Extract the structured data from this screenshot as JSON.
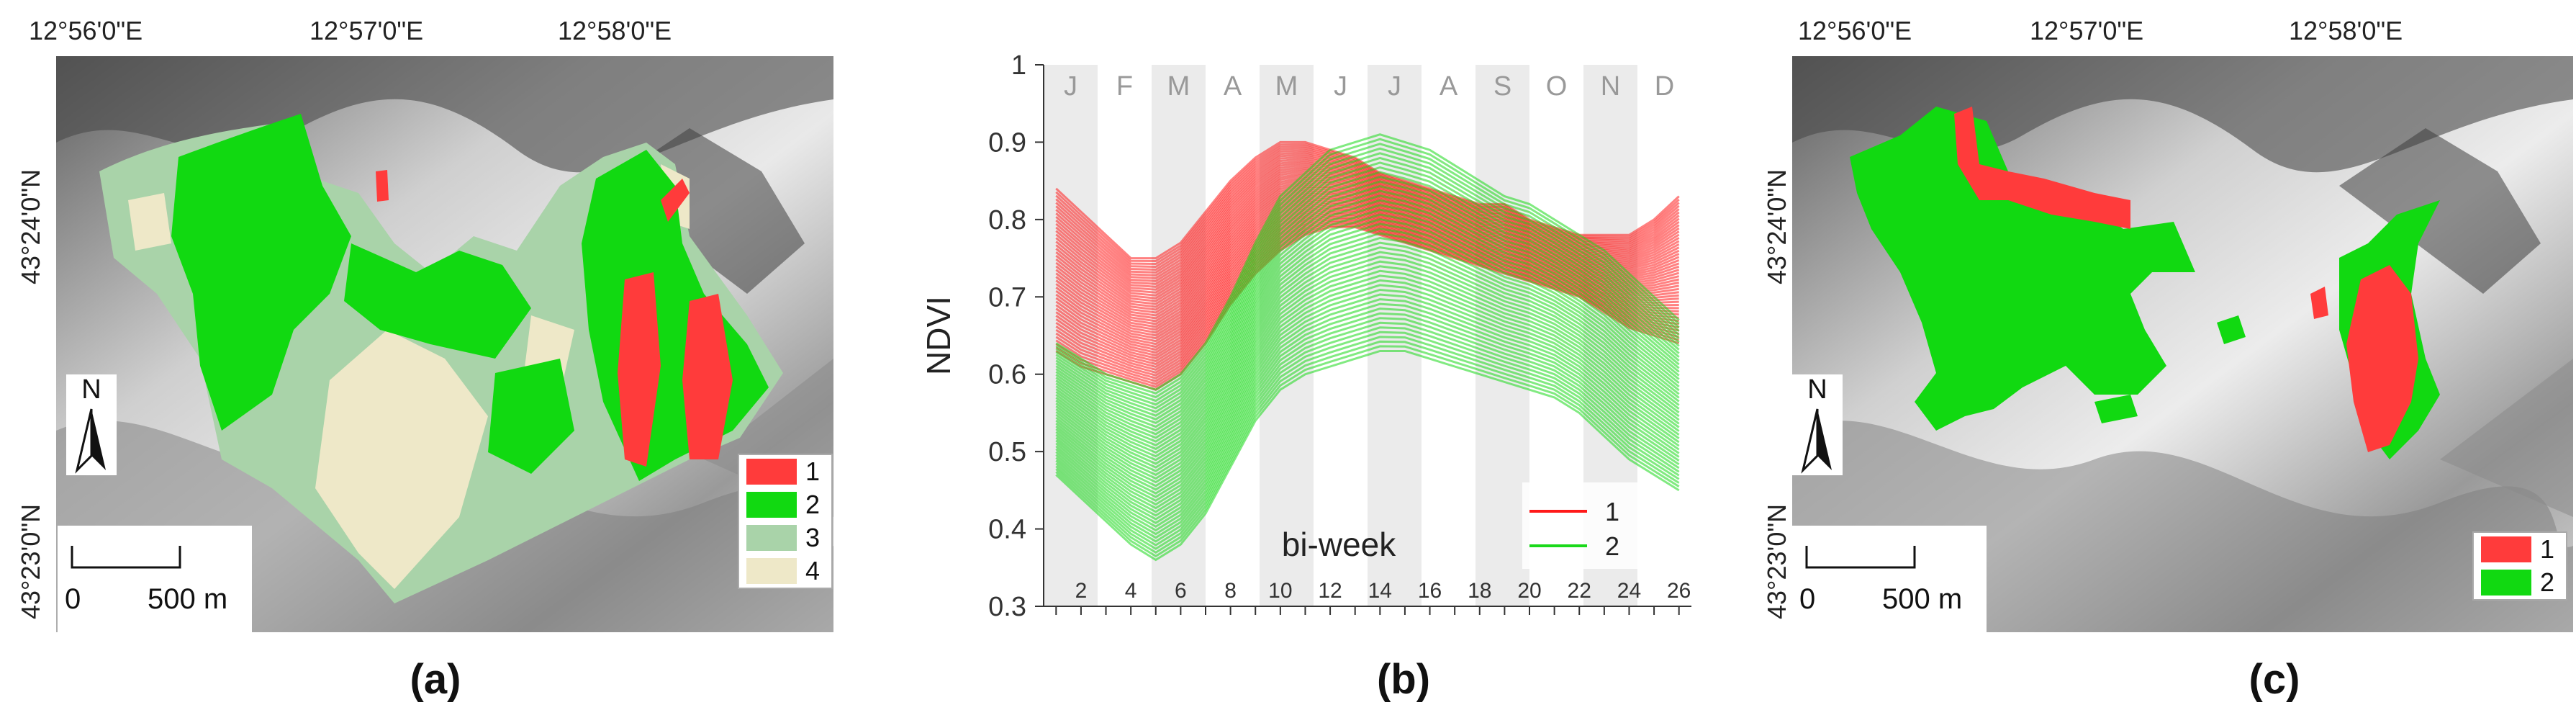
{
  "panels": {
    "a": {
      "caption": "(a)",
      "coords_top": [
        "12°56'0\"E",
        "12°57'0\"E",
        "12°58'0\"E"
      ],
      "coords_left": [
        "43°24'0\"N",
        "43°23'0\"N"
      ],
      "north": "N",
      "scale": {
        "zero": "0",
        "label": "500 m"
      },
      "legend": [
        {
          "label": "1",
          "color": "#ff3b3b"
        },
        {
          "label": "2",
          "color": "#11d911"
        },
        {
          "label": "3",
          "color": "#a9d3a9"
        },
        {
          "label": "4",
          "color": "#eee8c8"
        }
      ]
    },
    "b": {
      "caption": "(b)"
    },
    "c": {
      "caption": "(c)",
      "coords_top": [
        "12°56'0\"E",
        "12°57'0\"E",
        "12°58'0\"E"
      ],
      "coords_left": [
        "43°24'0\"N",
        "43°23'0\"N"
      ],
      "north": "N",
      "scale": {
        "zero": "0",
        "label": "500 m"
      },
      "legend": [
        {
          "label": "1",
          "color": "#ff3b3b"
        },
        {
          "label": "2",
          "color": "#11d911"
        }
      ]
    }
  },
  "chart_data": {
    "type": "line",
    "ylabel": "NDVI",
    "xlabel": "bi-week",
    "ylim": [
      0.3,
      1.0
    ],
    "xlim": [
      0.5,
      26.5
    ],
    "yticks": [
      "0.3",
      "0.4",
      "0.5",
      "0.6",
      "0.7",
      "0.8",
      "0.9",
      "1"
    ],
    "xticks": [
      "2",
      "4",
      "6",
      "8",
      "10",
      "12",
      "14",
      "16",
      "18",
      "20",
      "22",
      "24",
      "26"
    ],
    "months": [
      "J",
      "F",
      "M",
      "A",
      "M",
      "J",
      "J",
      "A",
      "S",
      "O",
      "N",
      "D"
    ],
    "legend": [
      {
        "label": "1",
        "color": "#ff1a1a"
      },
      {
        "label": "2",
        "color": "#1ad91a"
      }
    ],
    "series": [
      {
        "name": "1",
        "color": "#ff1a1a",
        "upper": [
          0.84,
          0.81,
          0.78,
          0.75,
          0.75,
          0.77,
          0.81,
          0.85,
          0.88,
          0.9,
          0.9,
          0.89,
          0.88,
          0.86,
          0.85,
          0.84,
          0.83,
          0.82,
          0.82,
          0.8,
          0.79,
          0.78,
          0.78,
          0.78,
          0.8,
          0.83
        ],
        "lower": [
          0.63,
          0.61,
          0.6,
          0.59,
          0.58,
          0.6,
          0.64,
          0.69,
          0.73,
          0.76,
          0.78,
          0.79,
          0.79,
          0.78,
          0.77,
          0.76,
          0.75,
          0.74,
          0.73,
          0.72,
          0.71,
          0.7,
          0.68,
          0.66,
          0.65,
          0.64
        ]
      },
      {
        "name": "2",
        "color": "#1ad91a",
        "upper": [
          0.64,
          0.62,
          0.6,
          0.59,
          0.58,
          0.6,
          0.64,
          0.7,
          0.77,
          0.83,
          0.86,
          0.89,
          0.9,
          0.91,
          0.9,
          0.89,
          0.87,
          0.85,
          0.83,
          0.82,
          0.8,
          0.78,
          0.76,
          0.73,
          0.7,
          0.67
        ],
        "lower": [
          0.47,
          0.44,
          0.41,
          0.38,
          0.36,
          0.38,
          0.42,
          0.48,
          0.54,
          0.58,
          0.6,
          0.61,
          0.62,
          0.63,
          0.63,
          0.62,
          0.61,
          0.6,
          0.59,
          0.58,
          0.57,
          0.55,
          0.52,
          0.49,
          0.47,
          0.45
        ]
      }
    ]
  }
}
